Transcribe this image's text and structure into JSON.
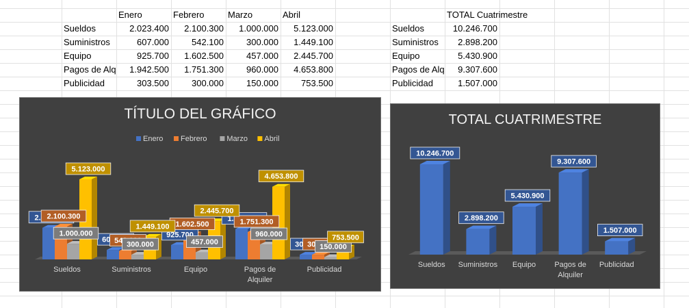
{
  "sheet": {
    "table1": {
      "headers": [
        "Enero",
        "Febrero",
        "Marzo",
        "Abril"
      ],
      "rows": [
        {
          "label": "Sueldos",
          "values": [
            "2.023.400",
            "2.100.300",
            "1.000.000",
            "5.123.000"
          ]
        },
        {
          "label": "Suministros",
          "values": [
            "607.000",
            "542.100",
            "300.000",
            "1.449.100"
          ]
        },
        {
          "label": "Equipo",
          "values": [
            "925.700",
            "1.602.500",
            "457.000",
            "2.445.700"
          ]
        },
        {
          "label": "Pagos de Alquiler",
          "values": [
            "1.942.500",
            "1.751.300",
            "960.000",
            "4.653.800"
          ]
        },
        {
          "label": "Publicidad",
          "values": [
            "303.500",
            "300.000",
            "150.000",
            "753.500"
          ]
        }
      ]
    },
    "table2": {
      "header": "TOTAL Cuatrimestre",
      "rows": [
        {
          "label": "Sueldos",
          "value": "10.246.700"
        },
        {
          "label": "Suministros",
          "value": "2.898.200"
        },
        {
          "label": "Equipo",
          "value": "5.430.900"
        },
        {
          "label": "Pagos de Alquiler",
          "value": "9.307.600"
        },
        {
          "label": "Publicidad",
          "value": "1.507.000"
        }
      ]
    }
  },
  "chart_data": [
    {
      "type": "bar",
      "title": "TÍTULO DEL GRÁFICO",
      "categories": [
        "Sueldos",
        "Suministros",
        "Equipo",
        "Pagos de Alquiler",
        "Publicidad"
      ],
      "category_labels": [
        [
          "Sueldos"
        ],
        [
          "Suministros"
        ],
        [
          "Equipo"
        ],
        [
          "Pagos de",
          "Alquiler"
        ],
        [
          "Publicidad"
        ]
      ],
      "series": [
        {
          "name": "Enero",
          "color": "#4472c4",
          "values": [
            2023400,
            607000,
            925700,
            1942500,
            303500
          ],
          "labels": [
            "2.023.400",
            "607.000",
            "925.700",
            "1.942.500",
            "303.500"
          ]
        },
        {
          "name": "Febrero",
          "color": "#ed7d31",
          "values": [
            2100300,
            542100,
            1602500,
            1751300,
            300000
          ],
          "labels": [
            "2.100.300",
            "542.100",
            "1.602.500",
            "1.751.300",
            "300.000"
          ]
        },
        {
          "name": "Marzo",
          "color": "#a5a5a5",
          "values": [
            1000000,
            300000,
            457000,
            960000,
            150000
          ],
          "labels": [
            "1.000.000",
            "300.000",
            "457.000",
            "960.000",
            "150.000"
          ]
        },
        {
          "name": "Abril",
          "color": "#ffc000",
          "values": [
            5123000,
            1449100,
            2445700,
            4653800,
            753500
          ],
          "labels": [
            "5.123.000",
            "1.449.100",
            "2.445.700",
            "4.653.800",
            "753.500"
          ]
        }
      ],
      "legend": "top",
      "grid": false
    },
    {
      "type": "bar",
      "title": "TOTAL CUATRIMESTRE",
      "categories": [
        "Sueldos",
        "Suministros",
        "Equipo",
        "Pagos de Alquiler",
        "Publicidad"
      ],
      "category_labels": [
        [
          "Sueldos"
        ],
        [
          "Suministros"
        ],
        [
          "Equipo"
        ],
        [
          "Pagos de",
          "Alquiler"
        ],
        [
          "Publicidad"
        ]
      ],
      "series": [
        {
          "name": "",
          "color": "#4472c4",
          "values": [
            10246700,
            2898200,
            5430900,
            9307600,
            1507000
          ],
          "labels": [
            "10.246.700",
            "2.898.200",
            "5.430.900",
            "9.307.600",
            "1.507.000"
          ]
        }
      ],
      "legend": "none",
      "grid": false
    }
  ]
}
